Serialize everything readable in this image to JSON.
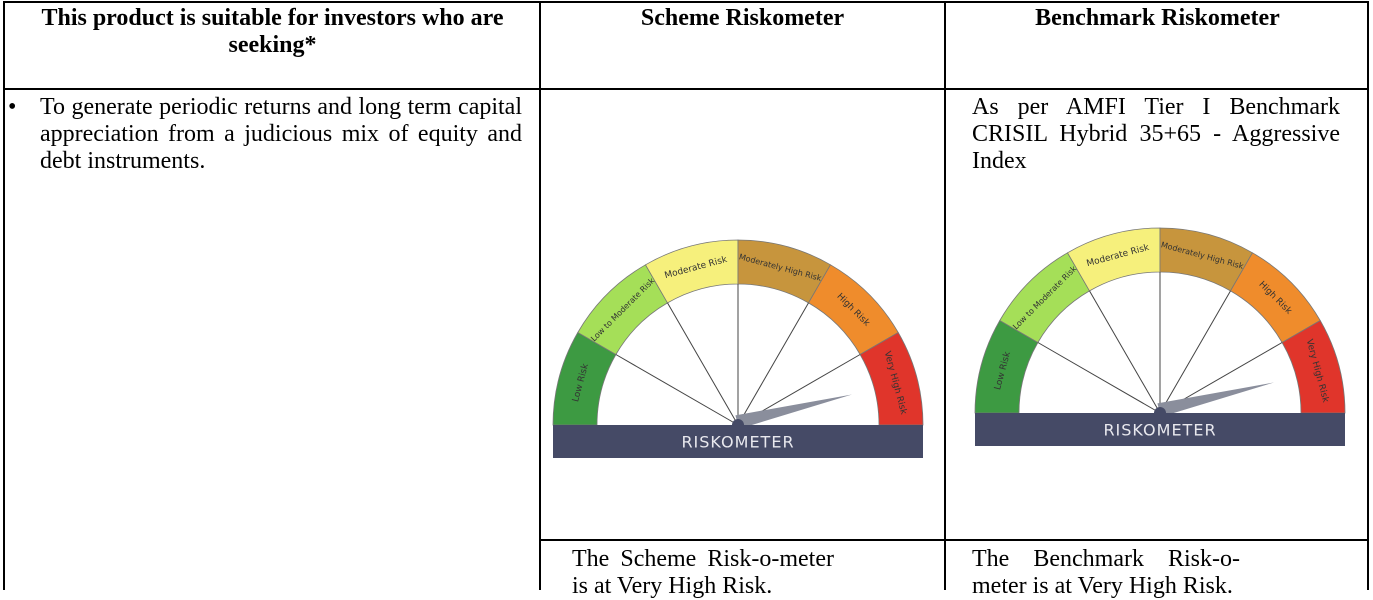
{
  "table": {
    "header": [
      "This product is suitable for investors who are seeking*",
      "Scheme Riskometer",
      "Benchmark Riskometer"
    ],
    "investor_objective": "To generate periodic returns and long term capital appreciation from a judicious mix of equity and debt instruments.",
    "benchmark_note": "As per AMFI Tier I Benchmark CRISIL Hybrid 35+65 - Aggressive Index",
    "riskometer": {
      "levels": [
        "Low Risk",
        "Low to Moderate Risk",
        "Moderate Risk",
        "Moderately High Risk",
        "High Risk",
        "Very High Risk"
      ],
      "title": "RISKOMETER"
    },
    "scheme_caption": "The Scheme Risk-o-meter is at Very High Risk.",
    "benchmark_caption": "The Benchmark Risk-o-meter is at Very High Risk."
  }
}
